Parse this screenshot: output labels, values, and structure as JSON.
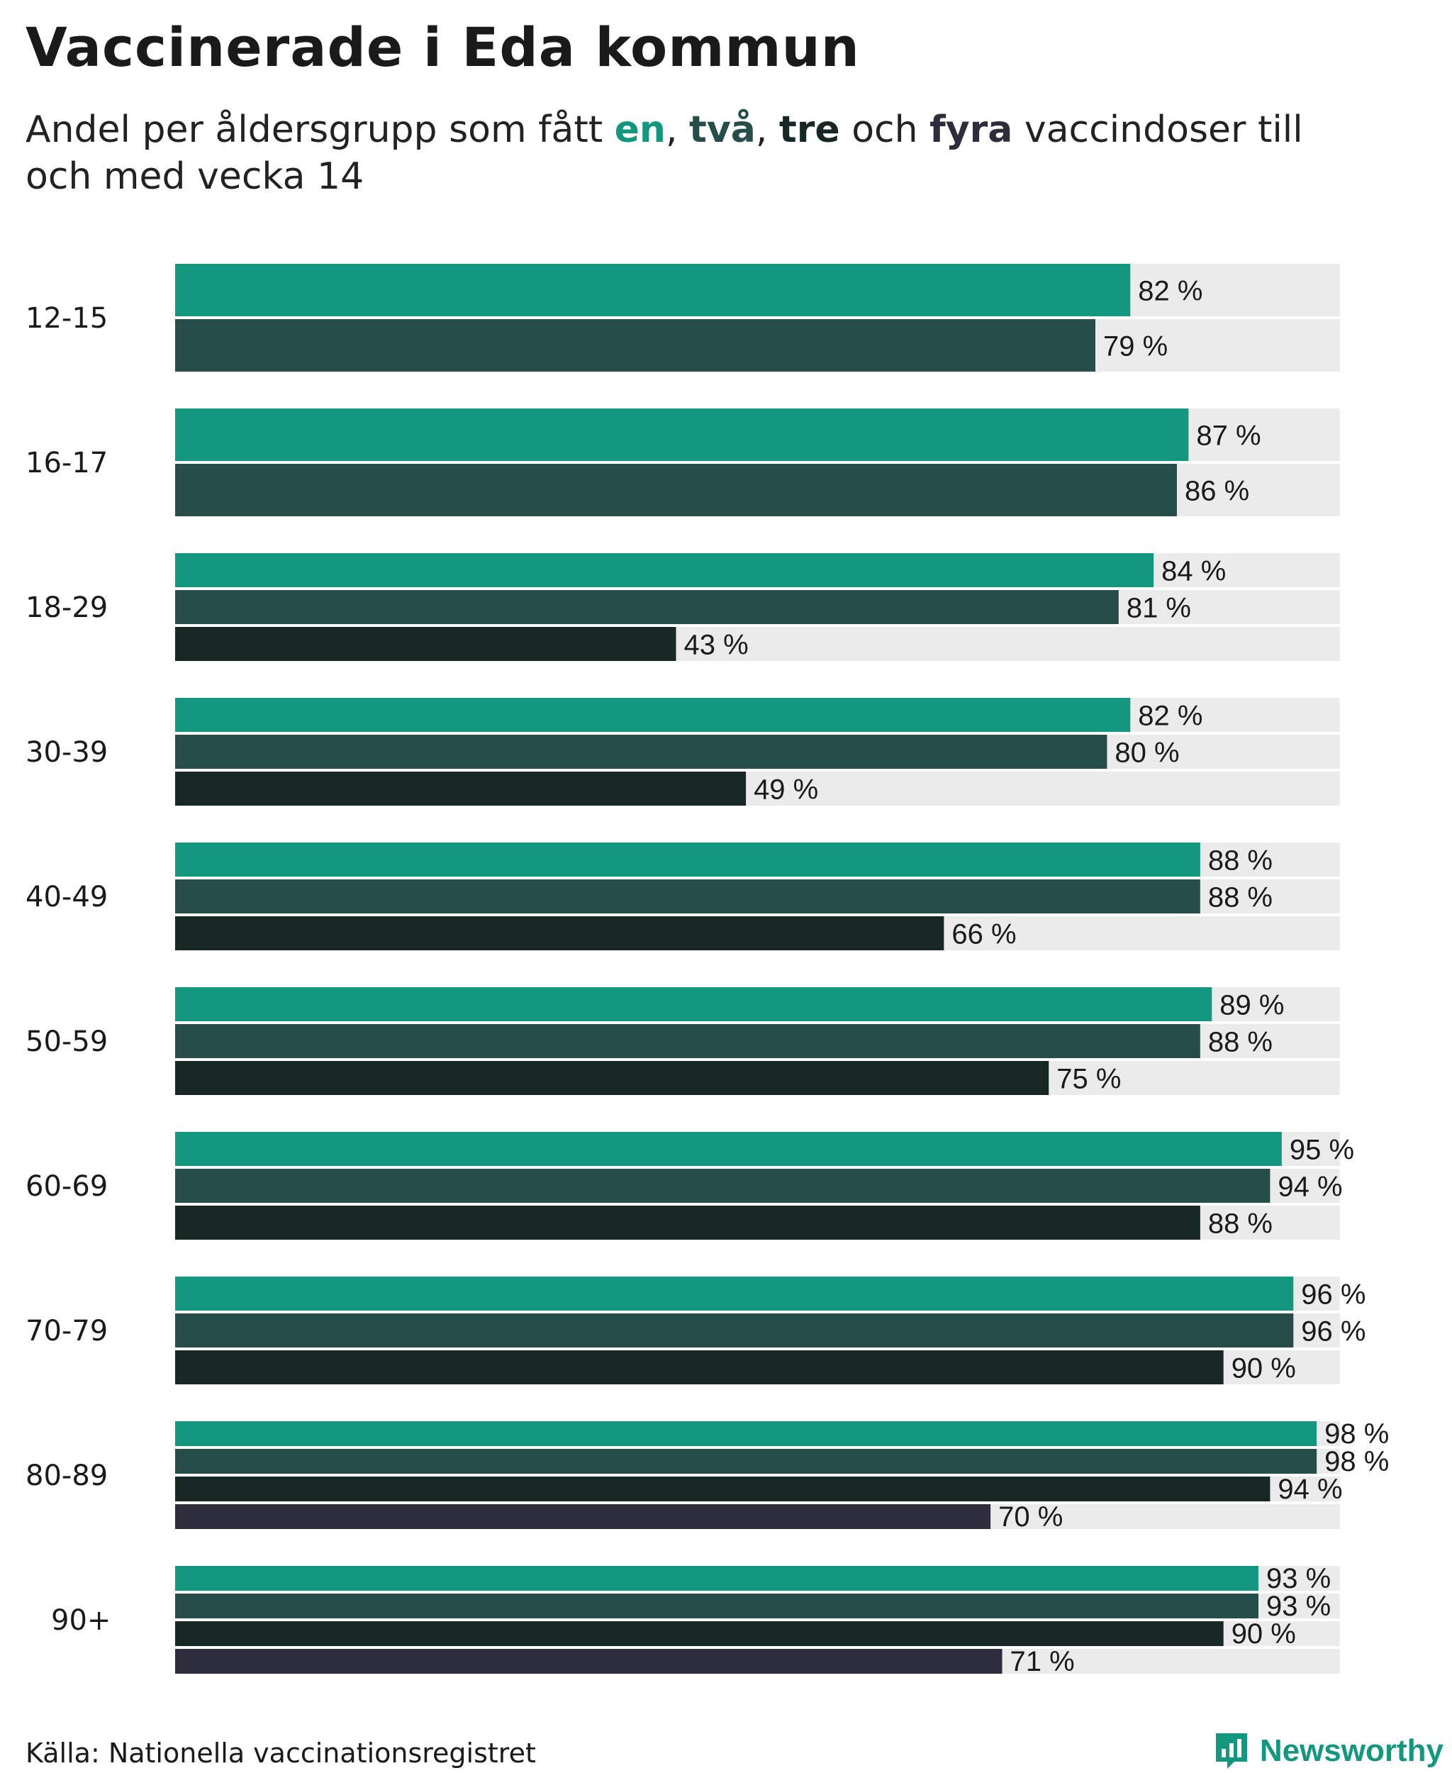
{
  "title": "Vaccinerade i Eda kommun",
  "subtitle": {
    "prefix": "Andel per åldersgrupp som fått ",
    "dose1": "en",
    "sep1": ", ",
    "dose2": "två",
    "sep2": ", ",
    "dose3": "tre",
    "sep3": " och ",
    "dose4": "fyra",
    "suffix": " vaccindoser till och med vecka 14"
  },
  "colors": {
    "dose1": "#13977f",
    "dose2": "#264d4a",
    "dose3": "#172724",
    "dose4": "#2e2d3b",
    "track": "#ebebeb",
    "brand": "#13977f"
  },
  "chart_data": {
    "type": "bar",
    "orientation": "horizontal",
    "title": "Vaccinerade i Eda kommun",
    "xlabel": "",
    "ylabel": "",
    "xlim": [
      0,
      100
    ],
    "value_suffix": " %",
    "categories": [
      "12-15",
      "16-17",
      "18-29",
      "30-39",
      "40-49",
      "50-59",
      "60-69",
      "70-79",
      "80-89",
      "90+"
    ],
    "series": [
      {
        "name": "en",
        "color": "#13977f",
        "values": [
          82,
          87,
          84,
          82,
          88,
          89,
          95,
          96,
          98,
          93
        ]
      },
      {
        "name": "två",
        "color": "#264d4a",
        "values": [
          79,
          86,
          81,
          80,
          88,
          88,
          94,
          96,
          98,
          93
        ]
      },
      {
        "name": "tre",
        "color": "#172724",
        "values": [
          null,
          null,
          43,
          49,
          66,
          75,
          88,
          90,
          94,
          90
        ]
      },
      {
        "name": "fyra",
        "color": "#2e2d3b",
        "values": [
          null,
          null,
          null,
          null,
          null,
          null,
          null,
          null,
          70,
          71
        ]
      }
    ]
  },
  "footer": {
    "source": "Källa: Nationella vaccinationsregistret",
    "brand": "Newsworthy"
  }
}
